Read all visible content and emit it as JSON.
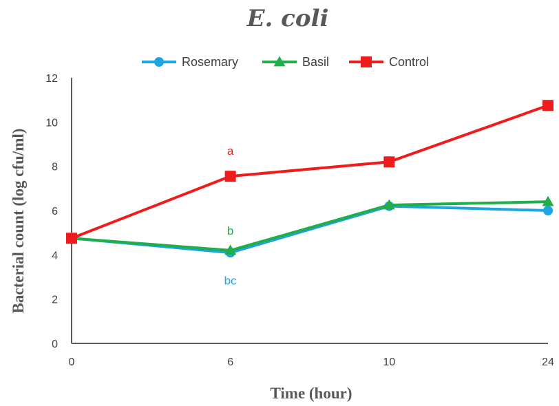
{
  "chart_data": {
    "type": "line",
    "title": "E. coli",
    "xlabel": "Time (hour)",
    "ylabel": "Bacterial count (log cfu/ml)",
    "categories": [
      "0",
      "6",
      "10",
      "24"
    ],
    "ylim": [
      0,
      12
    ],
    "yticks": [
      "0",
      "2",
      "4",
      "6",
      "8",
      "10",
      "12"
    ],
    "grid": false,
    "legend_position": "top",
    "series": [
      {
        "name": "Rosemary",
        "color": "#1ca5e0",
        "marker": "circle",
        "values": [
          4.75,
          4.1,
          6.2,
          6.0
        ]
      },
      {
        "name": "Basil",
        "color": "#1fae4a",
        "marker": "triangle",
        "values": [
          4.75,
          4.2,
          6.25,
          6.4
        ]
      },
      {
        "name": "Control",
        "color": "#ee1c1c",
        "marker": "square",
        "values": [
          4.75,
          7.55,
          8.2,
          10.75
        ]
      }
    ],
    "annotations": [
      {
        "text": "a",
        "category": "6",
        "y": 8.7,
        "color": "#ee1c1c"
      },
      {
        "text": "b",
        "category": "6",
        "y": 5.1,
        "color": "#1fae4a"
      },
      {
        "text": "bc",
        "category": "6",
        "y": 2.85,
        "color": "#1ca5e0"
      }
    ]
  }
}
